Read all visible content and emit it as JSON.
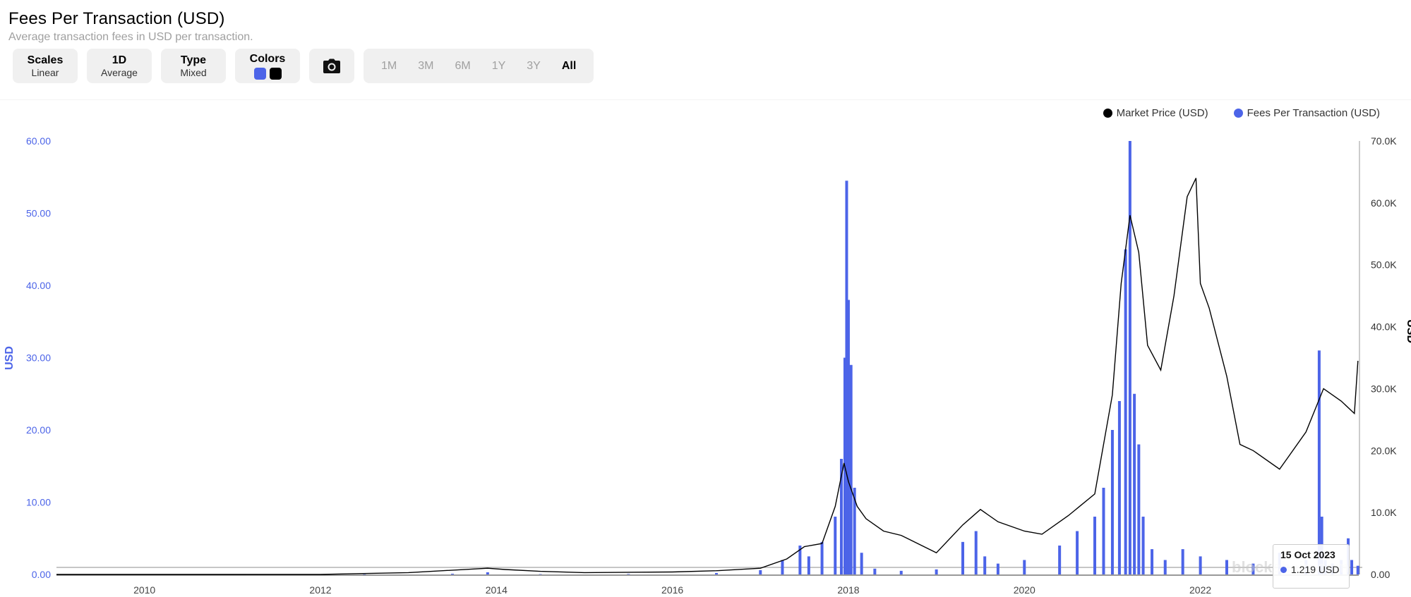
{
  "header": {
    "title": "Fees Per Transaction (USD)",
    "subtitle": "Average transaction fees in USD per transaction."
  },
  "toolbar": {
    "scales": {
      "label": "Scales",
      "value": "Linear"
    },
    "period": {
      "label": "1D",
      "value": "Average"
    },
    "type": {
      "label": "Type",
      "value": "Mixed"
    },
    "colors": {
      "label": "Colors",
      "swatch1": "#4c64e8",
      "swatch2": "#000000"
    },
    "camera_icon": "camera-icon",
    "ranges": [
      "1M",
      "3M",
      "6M",
      "1Y",
      "3Y",
      "All"
    ],
    "active_range": "All"
  },
  "legend": [
    {
      "name": "Market Price (USD)",
      "color": "#000000"
    },
    {
      "name": "Fees Per Transaction (USD)",
      "color": "#4c64e8"
    }
  ],
  "tooltip": {
    "date": "15 Oct 2023",
    "value": "1.219 USD"
  },
  "watermark": "blockchain.com",
  "chart_data": {
    "type": "bar",
    "xlabel": "",
    "ylabel": "USD",
    "ylabel_right": "USD",
    "xlim": [
      2009.0,
      2023.8
    ],
    "ylim": [
      0,
      60
    ],
    "ylim_right": [
      0,
      70000
    ],
    "x_ticks": [
      "2010",
      "2012",
      "2014",
      "2016",
      "2018",
      "2020",
      "2022"
    ],
    "y_ticks_left": [
      "0.00",
      "10.00",
      "20.00",
      "30.00",
      "40.00",
      "50.00",
      "60.00"
    ],
    "y_ticks_right": [
      "0.00",
      "10.0K",
      "20.0K",
      "30.0K",
      "40.0K",
      "50.0K",
      "60.0K",
      "70.0K"
    ],
    "grid": false,
    "legend_position": "top-right",
    "series": [
      {
        "name": "Fees Per Transaction (USD)",
        "type": "bar",
        "axis": "left",
        "color": "#4c64e8",
        "x": [
          2009.5,
          2011.0,
          2012.5,
          2013.5,
          2013.9,
          2014.5,
          2015.5,
          2016.5,
          2017.0,
          2017.25,
          2017.45,
          2017.55,
          2017.7,
          2017.85,
          2017.92,
          2017.96,
          2017.98,
          2018.0,
          2018.03,
          2018.07,
          2018.15,
          2018.3,
          2018.6,
          2019.0,
          2019.3,
          2019.45,
          2019.55,
          2019.7,
          2020.0,
          2020.4,
          2020.6,
          2020.8,
          2020.9,
          2021.0,
          2021.08,
          2021.15,
          2021.2,
          2021.25,
          2021.3,
          2021.35,
          2021.45,
          2021.6,
          2021.8,
          2022.0,
          2022.3,
          2022.6,
          2022.9,
          2023.2,
          2023.35,
          2023.38,
          2023.42,
          2023.5,
          2023.6,
          2023.68,
          2023.72,
          2023.79
        ],
        "y": [
          0.0,
          0.0,
          0.02,
          0.1,
          0.3,
          0.05,
          0.06,
          0.2,
          0.6,
          2.0,
          4.0,
          2.5,
          4.5,
          8.0,
          16.0,
          30.0,
          54.5,
          38.0,
          29.0,
          12.0,
          3.0,
          0.8,
          0.5,
          0.7,
          4.5,
          6.0,
          2.5,
          1.5,
          2.0,
          4.0,
          6.0,
          8.0,
          12.0,
          20.0,
          24.0,
          45.0,
          60.0,
          25.0,
          18.0,
          8.0,
          3.5,
          2.0,
          3.5,
          2.5,
          2.0,
          1.5,
          3.0,
          2.0,
          31.0,
          8.0,
          2.0,
          1.5,
          2.0,
          5.0,
          2.0,
          1.2
        ]
      },
      {
        "name": "Market Price (USD)",
        "type": "line",
        "axis": "right",
        "color": "#000000",
        "x": [
          2009.0,
          2010.0,
          2011.0,
          2012.0,
          2013.0,
          2013.9,
          2014.1,
          2014.5,
          2015.0,
          2016.0,
          2016.5,
          2017.0,
          2017.3,
          2017.5,
          2017.7,
          2017.85,
          2017.95,
          2018.0,
          2018.1,
          2018.2,
          2018.4,
          2018.6,
          2019.0,
          2019.3,
          2019.5,
          2019.7,
          2020.0,
          2020.2,
          2020.5,
          2020.8,
          2021.0,
          2021.1,
          2021.2,
          2021.3,
          2021.4,
          2021.55,
          2021.7,
          2021.85,
          2021.95,
          2022.0,
          2022.1,
          2022.3,
          2022.45,
          2022.6,
          2022.9,
          2023.0,
          2023.2,
          2023.4,
          2023.6,
          2023.75,
          2023.79
        ],
        "y": [
          0,
          1,
          5,
          10,
          300,
          1000,
          800,
          500,
          300,
          400,
          600,
          1000,
          2500,
          4500,
          5000,
          11000,
          18000,
          15000,
          11000,
          9000,
          7000,
          6300,
          3500,
          8000,
          10500,
          8500,
          7000,
          6500,
          9500,
          13000,
          29000,
          47000,
          58000,
          52000,
          37000,
          33000,
          45000,
          61000,
          64000,
          47000,
          43000,
          32000,
          21000,
          20000,
          17000,
          19000,
          23000,
          30000,
          28000,
          26000,
          34500
        ]
      }
    ]
  }
}
